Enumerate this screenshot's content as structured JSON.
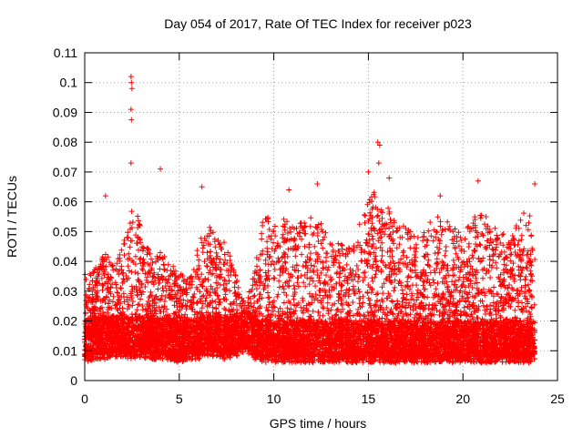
{
  "chart_data": {
    "type": "scatter",
    "title": "Day 054 of 2017, Rate Of TEC Index for receiver p023",
    "xlabel": "GPS time / hours",
    "ylabel": "ROTI / TECUs",
    "xlim": [
      0,
      25
    ],
    "ylim": [
      0,
      0.11
    ],
    "xticks": [
      "0",
      "5",
      "10",
      "15",
      "20",
      "25"
    ],
    "yticks": [
      "0",
      "0.01",
      "0.02",
      "0.03",
      "0.04",
      "0.05",
      "0.06",
      "0.07",
      "0.08",
      "0.09",
      "0.1",
      "0.11"
    ],
    "grid": true,
    "marker": "+",
    "color": "#ff0000",
    "notable_points": [
      {
        "x": 2.45,
        "y": 0.102
      },
      {
        "x": 2.47,
        "y": 0.1
      },
      {
        "x": 2.5,
        "y": 0.098
      },
      {
        "x": 2.45,
        "y": 0.091
      },
      {
        "x": 2.47,
        "y": 0.0875
      },
      {
        "x": 2.45,
        "y": 0.073
      },
      {
        "x": 4.0,
        "y": 0.071
      },
      {
        "x": 15.5,
        "y": 0.08
      },
      {
        "x": 15.6,
        "y": 0.079
      },
      {
        "x": 15.55,
        "y": 0.073
      },
      {
        "x": 15.0,
        "y": 0.07
      },
      {
        "x": 16.1,
        "y": 0.068
      },
      {
        "x": 12.3,
        "y": 0.066
      },
      {
        "x": 20.8,
        "y": 0.067
      },
      {
        "x": 23.8,
        "y": 0.066
      },
      {
        "x": 6.2,
        "y": 0.065
      },
      {
        "x": 1.1,
        "y": 0.062
      },
      {
        "x": 10.8,
        "y": 0.064
      },
      {
        "x": 18.8,
        "y": 0.062
      }
    ],
    "envelope": [
      [
        0.0,
        0.004,
        0.036
      ],
      [
        0.5,
        0.005,
        0.037
      ],
      [
        1.0,
        0.005,
        0.043
      ],
      [
        1.5,
        0.006,
        0.04
      ],
      [
        2.0,
        0.006,
        0.045
      ],
      [
        2.5,
        0.005,
        0.06
      ],
      [
        3.0,
        0.006,
        0.052
      ],
      [
        3.5,
        0.005,
        0.042
      ],
      [
        4.0,
        0.005,
        0.043
      ],
      [
        4.5,
        0.005,
        0.04
      ],
      [
        5.0,
        0.004,
        0.036
      ],
      [
        5.5,
        0.005,
        0.035
      ],
      [
        6.0,
        0.005,
        0.045
      ],
      [
        6.5,
        0.006,
        0.054
      ],
      [
        7.0,
        0.006,
        0.049
      ],
      [
        7.5,
        0.005,
        0.046
      ],
      [
        8.0,
        0.006,
        0.036
      ],
      [
        8.5,
        0.008,
        0.025
      ],
      [
        9.0,
        0.005,
        0.038
      ],
      [
        9.5,
        0.004,
        0.057
      ],
      [
        10.0,
        0.004,
        0.052
      ],
      [
        10.5,
        0.004,
        0.056
      ],
      [
        11.0,
        0.004,
        0.052
      ],
      [
        11.5,
        0.004,
        0.053
      ],
      [
        12.0,
        0.004,
        0.056
      ],
      [
        12.5,
        0.004,
        0.053
      ],
      [
        13.0,
        0.004,
        0.048
      ],
      [
        13.5,
        0.004,
        0.046
      ],
      [
        14.0,
        0.004,
        0.045
      ],
      [
        14.5,
        0.004,
        0.053
      ],
      [
        15.0,
        0.004,
        0.062
      ],
      [
        15.5,
        0.004,
        0.064
      ],
      [
        16.0,
        0.004,
        0.06
      ],
      [
        16.5,
        0.004,
        0.052
      ],
      [
        17.0,
        0.004,
        0.052
      ],
      [
        17.5,
        0.004,
        0.048
      ],
      [
        18.0,
        0.004,
        0.052
      ],
      [
        18.5,
        0.004,
        0.056
      ],
      [
        19.0,
        0.004,
        0.054
      ],
      [
        19.5,
        0.004,
        0.052
      ],
      [
        20.0,
        0.004,
        0.048
      ],
      [
        20.5,
        0.004,
        0.055
      ],
      [
        21.0,
        0.004,
        0.058
      ],
      [
        21.5,
        0.004,
        0.052
      ],
      [
        22.0,
        0.004,
        0.05
      ],
      [
        22.5,
        0.004,
        0.048
      ],
      [
        23.0,
        0.004,
        0.055
      ],
      [
        23.5,
        0.004,
        0.058
      ],
      [
        23.8,
        0.005,
        0.05
      ]
    ],
    "data_density_note_excluded": true
  }
}
